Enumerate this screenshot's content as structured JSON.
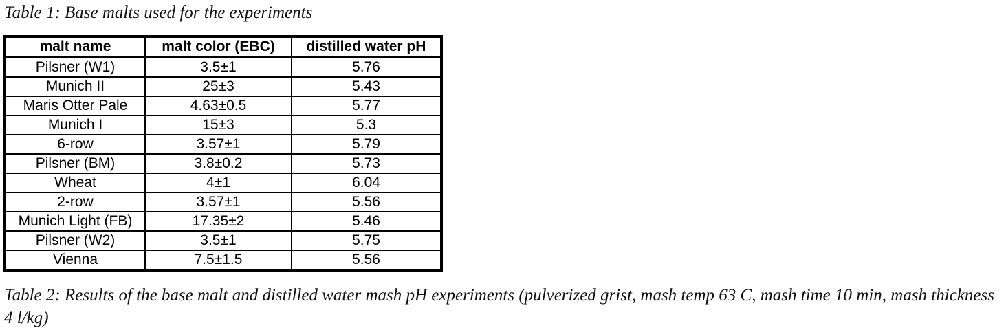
{
  "caption_top": "Table 1: Base malts used for the experiments",
  "table": {
    "header": [
      "malt name",
      "malt color (EBC)",
      "distilled water pH"
    ],
    "rows": [
      [
        "Pilsner (W1)",
        "3.5±1",
        "5.76"
      ],
      [
        "Munich II",
        "25±3",
        "5.43"
      ],
      [
        "Maris Otter Pale",
        "4.63±0.5",
        "5.77"
      ],
      [
        "Munich I",
        "15±3",
        "5.3"
      ],
      [
        "6-row",
        "3.57±1",
        "5.79"
      ],
      [
        "Pilsner (BM)",
        "3.8±0.2",
        "5.73"
      ],
      [
        "Wheat",
        "4±1",
        "6.04"
      ],
      [
        "2-row",
        "3.57±1",
        "5.56"
      ],
      [
        "Munich Light (FB)",
        "17.35±2",
        "5.46"
      ],
      [
        "Pilsner (W2)",
        "3.5±1",
        "5.75"
      ],
      [
        "Vienna",
        "7.5±1.5",
        "5.56"
      ]
    ]
  },
  "caption_bottom": "Table 2: Results of the base malt and distilled water mash pH experiments (pulverized grist, mash temp 63 C, mash time 10 min, mash thickness 4 l/kg)"
}
